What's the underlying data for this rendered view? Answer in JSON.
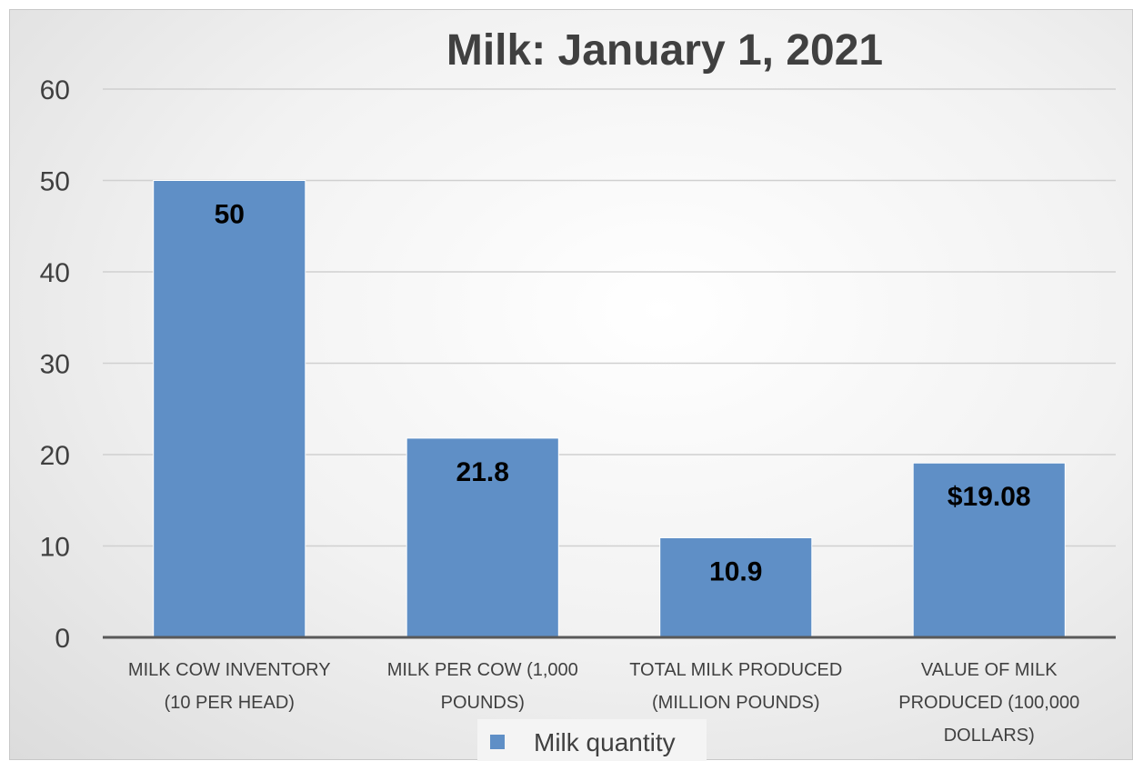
{
  "chart_data": {
    "type": "bar",
    "title": "Milk: January 1, 2021",
    "categories": [
      [
        "MILK COW INVENTORY",
        "(10 PER HEAD)"
      ],
      [
        "MILK PER COW (1,000",
        "POUNDS)"
      ],
      [
        "TOTAL MILK PRODUCED",
        "(MILLION POUNDS)"
      ],
      [
        "VALUE OF MILK",
        "PRODUCED (100,000",
        "DOLLARS)"
      ]
    ],
    "series": [
      {
        "name": "Milk quantity",
        "values": [
          50,
          21.8,
          10.9,
          19.08
        ],
        "data_labels": [
          "50",
          "21.8",
          "10.9",
          "$19.08"
        ],
        "color": "#5f8fc6"
      }
    ],
    "ylim": [
      0,
      60
    ],
    "yticks": [
      "0",
      "10",
      "20",
      "30",
      "40",
      "50",
      "60"
    ],
    "grid": true,
    "legend_position": "bottom"
  }
}
